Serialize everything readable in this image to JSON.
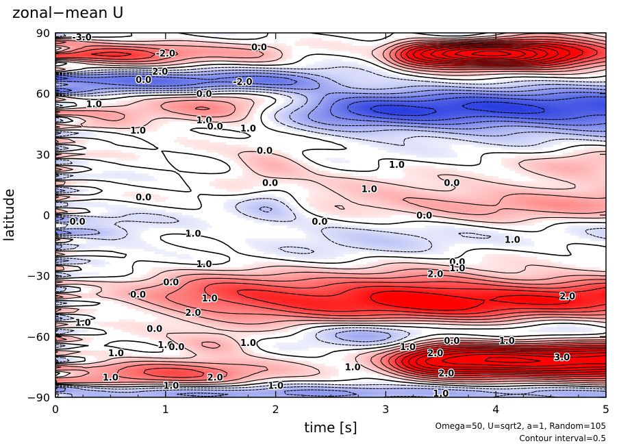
{
  "chart_data": {
    "type": "heatmap",
    "title": "zonal−mean U",
    "xlabel": "time [s]",
    "ylabel": "latitude",
    "xlim": [
      0,
      5
    ],
    "ylim": [
      -90,
      90
    ],
    "x_ticks": [
      "0",
      "1",
      "2",
      "3",
      "4",
      "5"
    ],
    "y_ticks": [
      "90",
      "60",
      "30",
      "0",
      "−30",
      "−60",
      "−90"
    ],
    "annotation_lines": [
      "Omega=50, U=sqrt2, a=1, Random=105",
      "Contour interval=0.5"
    ],
    "contour_interval": 0.5,
    "colors": {
      "positive": "#ff0000",
      "negative": "#2a3fe0",
      "zero": "#ffffff",
      "contour": "#000000"
    },
    "contour_labels": [
      {
        "text": "-3.0",
        "x": 0.24,
        "y": 88
      },
      {
        "text": "0.0",
        "x": 1.85,
        "y": 83
      },
      {
        "text": "-2.0",
        "x": 1.0,
        "y": 80
      },
      {
        "text": "2.0",
        "x": 0.95,
        "y": 71
      },
      {
        "text": "0.0",
        "x": 0.8,
        "y": 67
      },
      {
        "text": "-2.0",
        "x": 1.7,
        "y": 66
      },
      {
        "text": "0.0",
        "x": 1.35,
        "y": 60
      },
      {
        "text": "1.0",
        "x": 0.35,
        "y": 55
      },
      {
        "text": "1.0",
        "x": 1.35,
        "y": 47
      },
      {
        "text": "0.0",
        "x": 1.45,
        "y": 44
      },
      {
        "text": "1.0",
        "x": 0.75,
        "y": 42
      },
      {
        "text": "1.0",
        "x": 1.75,
        "y": 43
      },
      {
        "text": "0.0",
        "x": 1.9,
        "y": 32
      },
      {
        "text": "1.0",
        "x": 3.1,
        "y": 25
      },
      {
        "text": "0.0",
        "x": 1.95,
        "y": 16
      },
      {
        "text": "1.0",
        "x": 2.85,
        "y": 13
      },
      {
        "text": "0.0",
        "x": 0.8,
        "y": 9
      },
      {
        "text": "0.0",
        "x": 3.6,
        "y": 16
      },
      {
        "text": "0.0",
        "x": 0.2,
        "y": -3
      },
      {
        "text": "0.0",
        "x": 2.4,
        "y": -3
      },
      {
        "text": "0.0",
        "x": 3.35,
        "y": 0
      },
      {
        "text": "1.0",
        "x": 1.25,
        "y": -9
      },
      {
        "text": "1.0",
        "x": 4.15,
        "y": -12
      },
      {
        "text": "1.0",
        "x": 1.35,
        "y": -24
      },
      {
        "text": "0.0",
        "x": 3.65,
        "y": -23
      },
      {
        "text": "2.0",
        "x": 3.45,
        "y": -29
      },
      {
        "text": "1.0",
        "x": 3.65,
        "y": -26
      },
      {
        "text": "0.0",
        "x": 1.05,
        "y": -33
      },
      {
        "text": "0.0",
        "x": 0.75,
        "y": -39
      },
      {
        "text": "1.0",
        "x": 1.4,
        "y": -41
      },
      {
        "text": "2.0",
        "x": 1.25,
        "y": -48
      },
      {
        "text": "2.0",
        "x": 4.65,
        "y": -40
      },
      {
        "text": "1.0",
        "x": 0.25,
        "y": -53
      },
      {
        "text": "0.0",
        "x": 0.9,
        "y": -56
      },
      {
        "text": "1.0",
        "x": 1.0,
        "y": -64
      },
      {
        "text": "0.0",
        "x": 1.1,
        "y": -65
      },
      {
        "text": "1.0",
        "x": 1.75,
        "y": -63
      },
      {
        "text": "1.0",
        "x": 3.2,
        "y": -65
      },
      {
        "text": "0.0",
        "x": 3.6,
        "y": -62
      },
      {
        "text": "1.0",
        "x": 4.1,
        "y": -62
      },
      {
        "text": "1.0",
        "x": 0.55,
        "y": -68
      },
      {
        "text": "2.0",
        "x": 3.45,
        "y": -68
      },
      {
        "text": "1.0",
        "x": 2.7,
        "y": -75
      },
      {
        "text": "2.0",
        "x": 3.55,
        "y": -78
      },
      {
        "text": "3.0",
        "x": 4.6,
        "y": -70
      },
      {
        "text": "1.0",
        "x": 0.5,
        "y": -80
      },
      {
        "text": "2.0",
        "x": 1.45,
        "y": -80
      },
      {
        "text": "1.0",
        "x": 1.05,
        "y": -84
      },
      {
        "text": "1.0",
        "x": 2.0,
        "y": -84
      },
      {
        "text": "1.0",
        "x": 3.5,
        "y": -88
      }
    ]
  }
}
